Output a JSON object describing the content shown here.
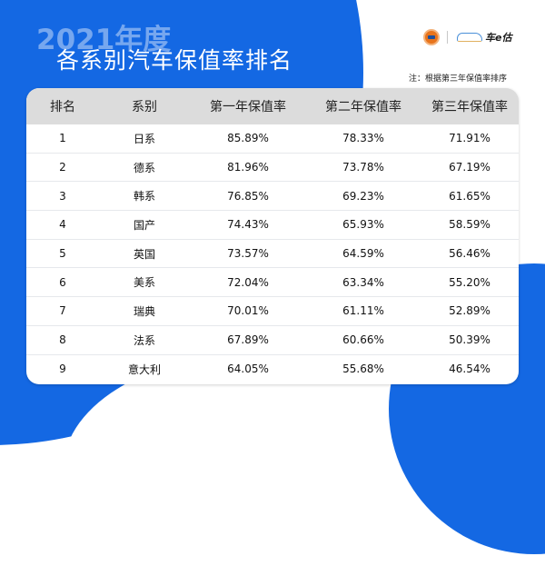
{
  "header": {
    "year_label": "2021年度",
    "title": "各系别汽车保值率排名",
    "logo_left": "cadcc-logo",
    "logo_right_text": "车e估",
    "note": "注：根据第三年保值率排序"
  },
  "colors": {
    "brand_blue": "#1468e3",
    "header_gray": "#dcdcdc"
  },
  "table": {
    "columns": [
      "排名",
      "系别",
      "第一年保值率",
      "第二年保值率",
      "第三年保值率"
    ],
    "rows": [
      [
        "1",
        "日系",
        "85.89%",
        "78.33%",
        "71.91%"
      ],
      [
        "2",
        "德系",
        "81.96%",
        "73.78%",
        "67.19%"
      ],
      [
        "3",
        "韩系",
        "76.85%",
        "69.23%",
        "61.65%"
      ],
      [
        "4",
        "国产",
        "74.43%",
        "65.93%",
        "58.59%"
      ],
      [
        "5",
        "英国",
        "73.57%",
        "64.59%",
        "56.46%"
      ],
      [
        "6",
        "美系",
        "72.04%",
        "63.34%",
        "55.20%"
      ],
      [
        "7",
        "瑞典",
        "70.01%",
        "61.11%",
        "52.89%"
      ],
      [
        "8",
        "法系",
        "67.89%",
        "60.66%",
        "50.39%"
      ],
      [
        "9",
        "意大利",
        "64.05%",
        "55.68%",
        "46.54%"
      ]
    ]
  }
}
